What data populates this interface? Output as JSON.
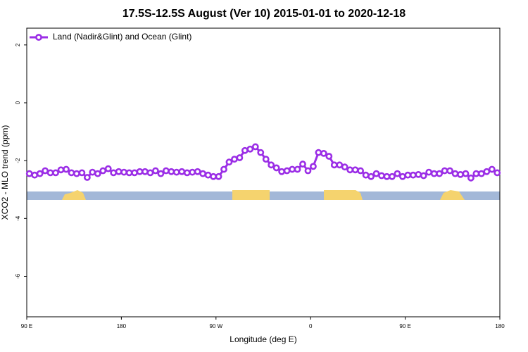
{
  "chart_data": {
    "type": "line",
    "title": "17.5S-12.5S August (Ver 10)   2015-01-01 to 2020-12-18",
    "x_label": "Longitude (deg E)",
    "y_label": "XCO2 - MLO trend (ppm)",
    "x": [
      92.5,
      97.5,
      102.5,
      107.5,
      112.5,
      117.5,
      122.5,
      127.5,
      132.5,
      137.5,
      142.5,
      147.5,
      152.5,
      157.5,
      162.5,
      167.5,
      172.5,
      177.5,
      182.5,
      187.5,
      192.5,
      197.5,
      202.5,
      207.5,
      212.5,
      217.5,
      222.5,
      227.5,
      232.5,
      237.5,
      242.5,
      247.5,
      252.5,
      257.5,
      262.5,
      267.5,
      272.5,
      277.5,
      282.5,
      287.5,
      292.5,
      297.5,
      302.5,
      307.5,
      312.5,
      317.5,
      322.5,
      327.5,
      332.5,
      337.5,
      342.5,
      347.5,
      352.5,
      357.5,
      362.5,
      367.5,
      372.5,
      377.5,
      382.5,
      387.5,
      392.5,
      397.5,
      402.5,
      407.5,
      412.5,
      417.5,
      422.5,
      427.5,
      432.5,
      437.5,
      442.5,
      447.5,
      452.5,
      457.5,
      462.5,
      467.5,
      472.5,
      477.5,
      482.5,
      487.5,
      492.5,
      497.5,
      502.5,
      507.5,
      512.5,
      517.5,
      522.5,
      527.5,
      532.5,
      537.5
    ],
    "series": [
      {
        "name": "Land (Nadir&Glint) and Ocean (Glint)",
        "color": "#9b2ee6",
        "values": [
          -2.45,
          -2.5,
          -2.45,
          -2.35,
          -2.42,
          -2.42,
          -2.32,
          -2.3,
          -2.42,
          -2.45,
          -2.42,
          -2.58,
          -2.4,
          -2.45,
          -2.35,
          -2.28,
          -2.42,
          -2.38,
          -2.4,
          -2.42,
          -2.42,
          -2.38,
          -2.38,
          -2.42,
          -2.35,
          -2.45,
          -2.35,
          -2.38,
          -2.4,
          -2.38,
          -2.42,
          -2.4,
          -2.38,
          -2.45,
          -2.5,
          -2.55,
          -2.55,
          -2.3,
          -2.05,
          -1.95,
          -1.9,
          -1.65,
          -1.6,
          -1.52,
          -1.72,
          -1.95,
          -2.15,
          -2.25,
          -2.38,
          -2.35,
          -2.3,
          -2.3,
          -2.12,
          -2.35,
          -2.2,
          -1.72,
          -1.75,
          -1.85,
          -2.15,
          -2.15,
          -2.22,
          -2.32,
          -2.32,
          -2.35,
          -2.5,
          -2.55,
          -2.45,
          -2.52,
          -2.55,
          -2.55,
          -2.45,
          -2.55,
          -2.5,
          -2.5,
          -2.48,
          -2.52,
          -2.4,
          -2.45,
          -2.45,
          -2.35,
          -2.35,
          -2.45,
          -2.48,
          -2.45,
          -2.6,
          -2.45,
          -2.45,
          -2.38,
          -2.3,
          -2.42
        ]
      }
    ],
    "xlim": [
      90,
      540
    ],
    "xticks": [
      {
        "value": 90,
        "label": "90 E"
      },
      180,
      {
        "value": 270,
        "label": "90 W"
      },
      {
        "value": 360,
        "label": "0"
      },
      {
        "value": 450,
        "label": "90 E"
      },
      {
        "value": 540,
        "label": "180"
      }
    ],
    "ylim": [
      -7.4,
      2.58
    ],
    "yticks": [
      2,
      0,
      -2,
      -4,
      -6
    ],
    "legend": "top-left"
  }
}
